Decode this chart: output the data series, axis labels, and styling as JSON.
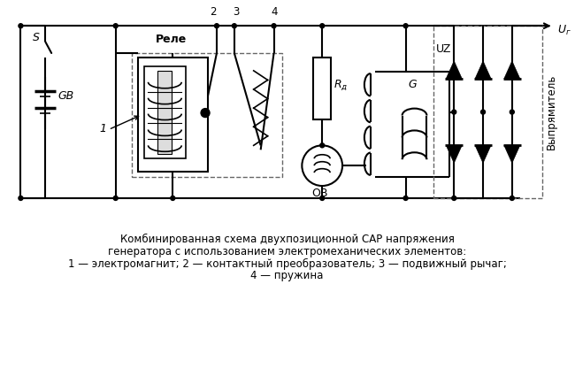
{
  "background_color": "#ffffff",
  "title_lines": [
    "Комбинированная схема двухпозиционной САР напряжения",
    "генератора с использованием электромеханических элементов:",
    "1 — электромагнит; 2 — контактный преобразователь; 3 — подвижный рычаг;",
    "4 — пружина"
  ],
  "title_fontsize": 8.5,
  "label_S": "S",
  "label_GB": "GB",
  "label_1": "1",
  "label_Rele": "Реле",
  "label_2": "2",
  "label_3": "3",
  "label_4": "4",
  "label_Rd": "R_д",
  "label_UZ": "UZ",
  "label_OB": "ОВ",
  "label_G": "G",
  "label_Ur": "U_г",
  "label_Vypryamitel": "Выпрямитель",
  "line_color": "#000000",
  "line_width": 1.5
}
